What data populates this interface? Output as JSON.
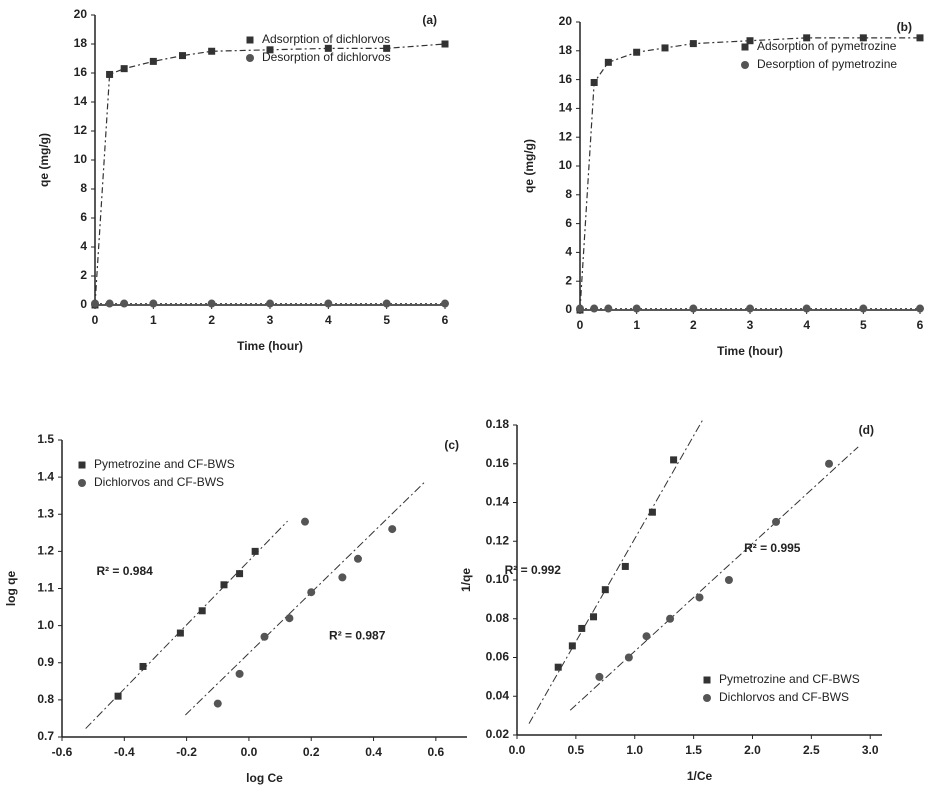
{
  "chart_data": [
    {
      "type": "line",
      "title": "(a)",
      "x_label": "Time (hour)",
      "y_label": "qe (mg/g)",
      "xlim": [
        0,
        6
      ],
      "xticks": [
        0,
        1,
        2,
        3,
        4,
        5,
        6
      ],
      "ylim": [
        0,
        20
      ],
      "yticks": [
        0,
        2,
        4,
        6,
        8,
        10,
        12,
        14,
        16,
        18,
        20
      ],
      "legend": "upper center",
      "series": [
        {
          "name": "Adsorption of dichlorvos",
          "color": "#333333",
          "x": [
            0,
            0.25,
            0.5,
            1,
            1.5,
            2,
            3,
            4,
            5,
            6
          ],
          "values": [
            0,
            15.9,
            16.3,
            16.8,
            17.2,
            17.5,
            17.6,
            17.7,
            17.7,
            18.0
          ]
        },
        {
          "name": "Desorption of dichlorvos",
          "color": "#555555",
          "x": [
            0,
            0.25,
            0.5,
            1,
            2,
            3,
            4,
            5,
            6
          ],
          "values": [
            0.1,
            0.1,
            0.1,
            0.1,
            0.1,
            0.1,
            0.1,
            0.1,
            0.1
          ]
        }
      ]
    },
    {
      "type": "line",
      "title": "(b)",
      "x_label": "Time (hour)",
      "y_label": "qe (mg/g)",
      "xlim": [
        0,
        6
      ],
      "xticks": [
        0,
        1,
        2,
        3,
        4,
        5,
        6
      ],
      "ylim": [
        0,
        20
      ],
      "yticks": [
        0,
        2,
        4,
        6,
        8,
        10,
        12,
        14,
        16,
        18,
        20
      ],
      "legend": "upper right",
      "series": [
        {
          "name": "Adsorption of pymetrozine",
          "color": "#333333",
          "x": [
            0,
            0.25,
            0.5,
            1,
            1.5,
            2,
            3,
            4,
            5,
            6
          ],
          "values": [
            0,
            15.8,
            17.2,
            17.9,
            18.2,
            18.5,
            18.7,
            18.9,
            18.9,
            18.9
          ]
        },
        {
          "name": "Desorption of pymetrozine",
          "color": "#555555",
          "x": [
            0,
            0.25,
            0.5,
            1,
            2,
            3,
            4,
            5,
            6
          ],
          "values": [
            0.1,
            0.1,
            0.1,
            0.1,
            0.1,
            0.1,
            0.1,
            0.1,
            0.1
          ]
        }
      ]
    },
    {
      "type": "scatter",
      "title": "(c)",
      "x_label": "log Ce",
      "y_label": "log qe",
      "xlim": [
        -0.6,
        0.7
      ],
      "xticks": [
        -0.6,
        -0.4,
        -0.2,
        {
          "value": 0,
          "label": "0.0"
        },
        0.2,
        0.4,
        0.6
      ],
      "ylim": [
        0.7,
        1.5
      ],
      "yticks": [
        0.7,
        0.8,
        0.9,
        {
          "value": 1,
          "label": "1.0"
        },
        1.1,
        1.2,
        1.3,
        1.4,
        1.5
      ],
      "legend": "upper left",
      "annotations": [
        "R² = 0.984",
        "R² = 0.987"
      ],
      "series": [
        {
          "name": "Pymetrozine and CF-BWS",
          "color": "#333333",
          "x": [
            -0.42,
            -0.34,
            -0.22,
            -0.15,
            -0.08,
            -0.03,
            0.02
          ],
          "values": [
            0.81,
            0.89,
            0.98,
            1.04,
            1.11,
            1.14,
            1.2
          ]
        },
        {
          "name": "Dichlorvos and CF-BWS",
          "color": "#555555",
          "x": [
            -0.1,
            -0.03,
            0.05,
            0.13,
            0.18,
            0.2,
            0.3,
            0.35,
            0.46
          ],
          "values": [
            0.79,
            0.87,
            0.97,
            1.02,
            1.28,
            1.09,
            1.13,
            1.18,
            1.26
          ]
        }
      ]
    },
    {
      "type": "scatter",
      "title": "(d)",
      "x_label": "1/Ce",
      "y_label": "1/qe",
      "xlim": [
        0,
        3.1
      ],
      "xticks": [
        {
          "value": 0,
          "label": "0.0"
        },
        0.5,
        {
          "value": 1,
          "label": "1.0"
        },
        1.5,
        {
          "value": 2,
          "label": "2.0"
        },
        2.5,
        {
          "value": 3,
          "label": "3.0"
        }
      ],
      "ylim": [
        0.02,
        0.18
      ],
      "yticks": [
        0.02,
        0.04,
        0.06,
        0.08,
        {
          "value": 0.1,
          "label": "0.10"
        },
        0.12,
        0.14,
        0.16,
        0.18
      ],
      "legend": "lower right",
      "annotations": [
        "R² = 0.992",
        "R² = 0.995"
      ],
      "series": [
        {
          "name": "Pymetrozine and CF-BWS",
          "color": "#333333",
          "x": [
            0.35,
            0.47,
            0.55,
            0.65,
            0.75,
            0.92,
            1.15,
            1.33
          ],
          "values": [
            0.055,
            0.066,
            0.075,
            0.081,
            0.095,
            0.107,
            0.135,
            0.162
          ]
        },
        {
          "name": "Dichlorvos and CF-BWS",
          "color": "#555555",
          "x": [
            0.7,
            0.95,
            1.1,
            1.3,
            1.55,
            1.8,
            2.2,
            2.65
          ],
          "values": [
            0.05,
            0.06,
            0.071,
            0.08,
            0.091,
            0.1,
            0.13,
            0.16
          ]
        }
      ]
    }
  ]
}
